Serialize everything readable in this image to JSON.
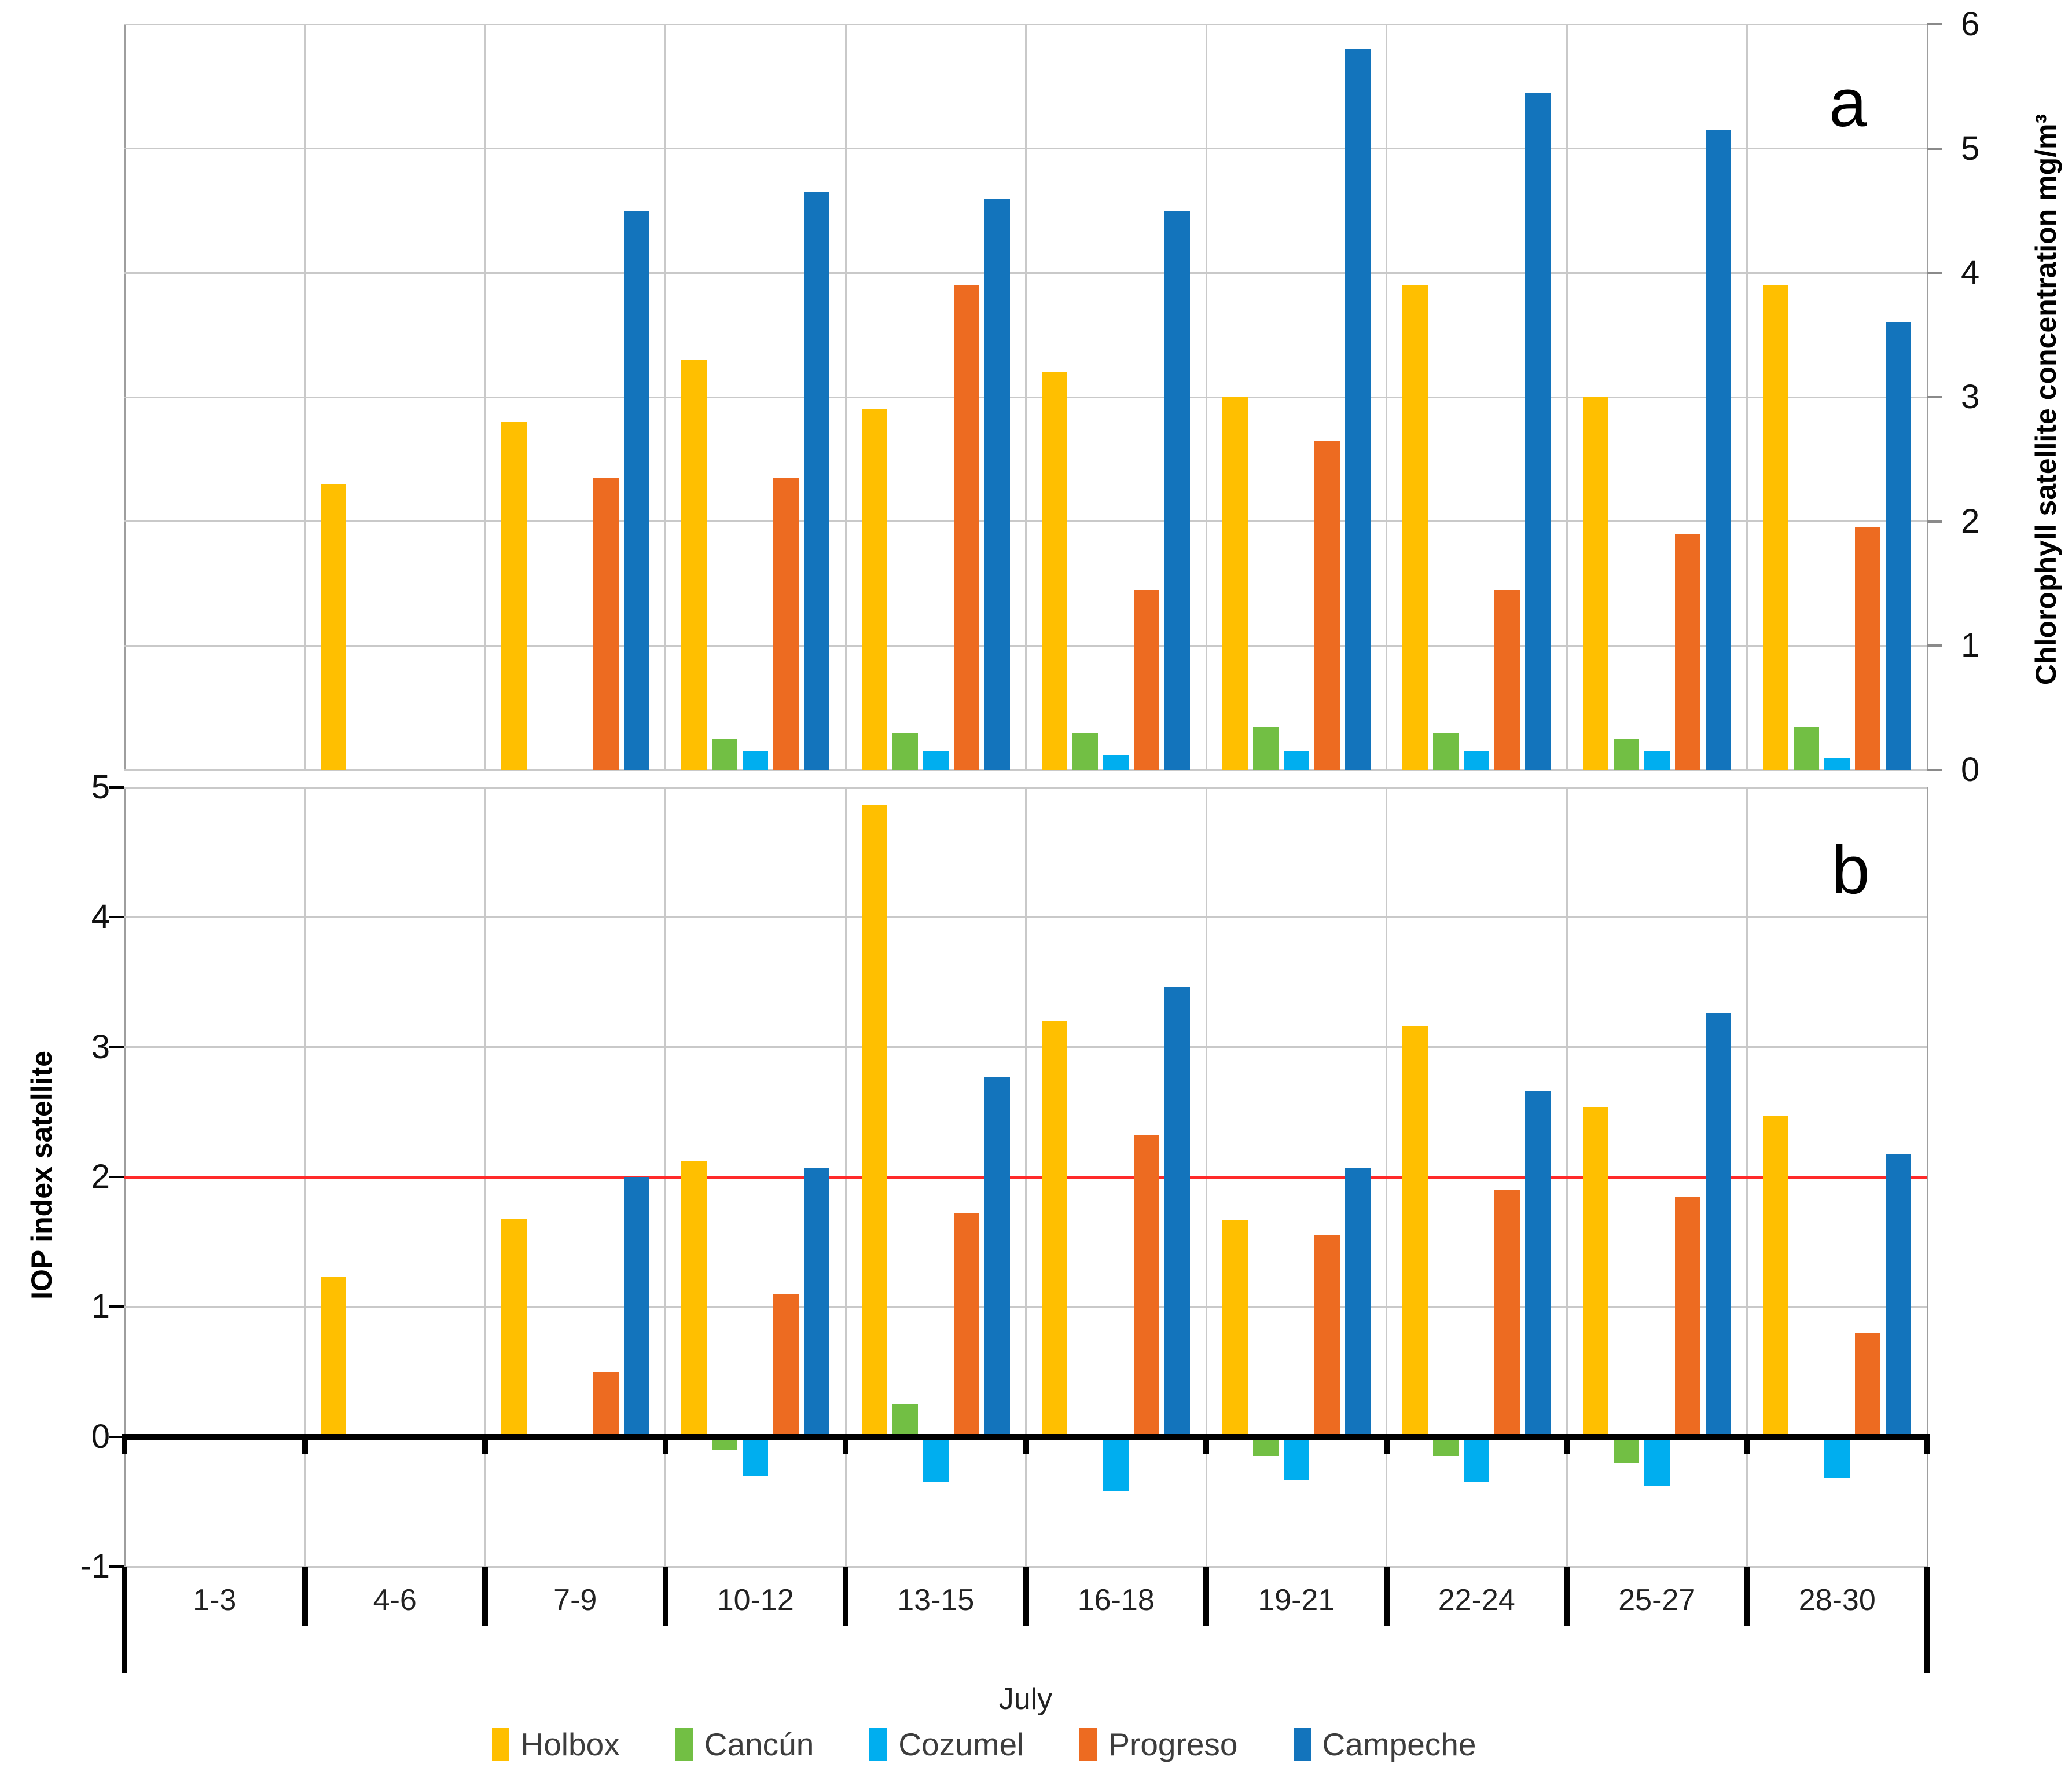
{
  "figure": {
    "legend": {
      "items": [
        {
          "label": "Holbox",
          "color": "#FFBF00"
        },
        {
          "label": "Cancún",
          "color": "#72BF44"
        },
        {
          "label": "Cozumel",
          "color": "#00AEEF"
        },
        {
          "label": "Progreso",
          "color": "#ED6B21"
        },
        {
          "label": "Campeche",
          "color": "#1374BC"
        }
      ]
    }
  },
  "chart_data": [
    {
      "type": "bar",
      "panel_label": "a",
      "ylabel": "Chlorophyll satellite concentration  mg/m³",
      "y_axis_side": "right",
      "ylim": [
        0,
        6
      ],
      "yticks": [
        0,
        1,
        2,
        3,
        4,
        5,
        6
      ],
      "grid": true,
      "categories": [
        "1-3",
        "4-6",
        "7-9",
        "10-12",
        "13-15",
        "16-18",
        "19-21",
        "22-24",
        "25-27",
        "28-30"
      ],
      "series": [
        {
          "name": "Holbox",
          "color": "#FFBF00",
          "values": [
            null,
            2.3,
            2.8,
            3.3,
            2.9,
            3.2,
            3.0,
            3.9,
            3.0,
            3.9
          ]
        },
        {
          "name": "Cancún",
          "color": "#72BF44",
          "values": [
            null,
            null,
            null,
            0.25,
            0.3,
            0.3,
            0.35,
            0.3,
            0.25,
            0.35
          ]
        },
        {
          "name": "Cozumel",
          "color": "#00AEEF",
          "values": [
            null,
            null,
            null,
            0.15,
            0.15,
            0.12,
            0.15,
            0.15,
            0.15,
            0.1
          ]
        },
        {
          "name": "Progreso",
          "color": "#ED6B21",
          "values": [
            null,
            null,
            2.35,
            2.35,
            3.9,
            1.45,
            2.65,
            1.45,
            1.9,
            1.95
          ]
        },
        {
          "name": "Campeche",
          "color": "#1374BC",
          "values": [
            null,
            null,
            4.5,
            4.65,
            4.6,
            4.5,
            5.8,
            5.45,
            5.15,
            3.6
          ]
        }
      ]
    },
    {
      "type": "bar",
      "panel_label": "b",
      "ylabel": "IOP index satellite",
      "y_axis_side": "left",
      "xlabel": "July",
      "ylim": [
        -1,
        5
      ],
      "yticks": [
        -1,
        0,
        1,
        2,
        3,
        4,
        5
      ],
      "reference_line_y": 2,
      "reference_line_color": "#FF2A2A",
      "grid": true,
      "categories": [
        "1-3",
        "4-6",
        "7-9",
        "10-12",
        "13-15",
        "16-18",
        "19-21",
        "22-24",
        "25-27",
        "28-30"
      ],
      "series": [
        {
          "name": "Holbox",
          "color": "#FFBF00",
          "values": [
            null,
            1.23,
            1.68,
            2.12,
            4.86,
            3.2,
            1.67,
            3.16,
            2.54,
            2.47
          ]
        },
        {
          "name": "Cancún",
          "color": "#72BF44",
          "values": [
            null,
            null,
            null,
            -0.1,
            0.25,
            null,
            -0.15,
            -0.15,
            -0.2,
            null
          ]
        },
        {
          "name": "Cozumel",
          "color": "#00AEEF",
          "values": [
            null,
            null,
            null,
            -0.3,
            -0.35,
            -0.42,
            -0.33,
            -0.35,
            -0.38,
            -0.32
          ]
        },
        {
          "name": "Progreso",
          "color": "#ED6B21",
          "values": [
            null,
            null,
            0.5,
            1.1,
            1.72,
            2.32,
            1.55,
            1.9,
            1.85,
            0.8
          ]
        },
        {
          "name": "Campeche",
          "color": "#1374BC",
          "values": [
            null,
            null,
            2.0,
            2.07,
            2.77,
            3.46,
            2.07,
            2.66,
            3.26,
            2.18
          ]
        }
      ]
    }
  ]
}
